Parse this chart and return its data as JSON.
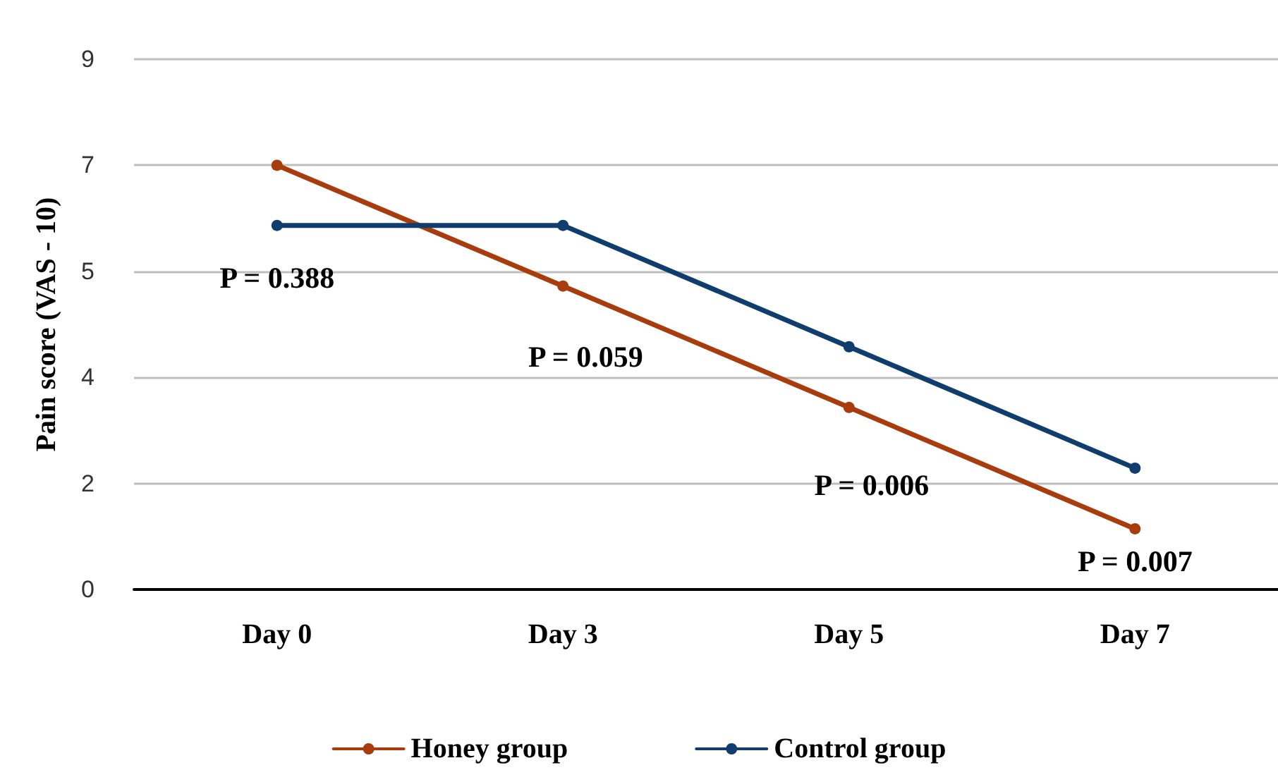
{
  "chart_data": {
    "type": "line",
    "ylabel": "Pain score (VAS - 10)",
    "categories": [
      "Day 0",
      "Day 3",
      "Day 5",
      "Day 7"
    ],
    "series": [
      {
        "name": "Honey group",
        "color": "#a83c0c",
        "values": [
          7.2,
          5.15,
          3.09,
          1.03
        ]
      },
      {
        "name": "Control group",
        "color": "#0e3d6e",
        "values": [
          6.18,
          6.18,
          4.12,
          2.06
        ]
      }
    ],
    "ylim": [
      0,
      9
    ],
    "yticks": [
      {
        "value": 0,
        "label": "0"
      },
      {
        "value": 1.8,
        "label": "2"
      },
      {
        "value": 3.6,
        "label": "4"
      },
      {
        "value": 5.4,
        "label": "5"
      },
      {
        "value": 7.2,
        "label": "7"
      },
      {
        "value": 9,
        "label": "9"
      }
    ],
    "annotations": [
      "P = 0.388",
      "P = 0.059",
      "P = 0.006",
      "P = 0.007"
    ],
    "grid": "y",
    "legend": "bottom",
    "marker": "circle",
    "line_style": "solid"
  }
}
